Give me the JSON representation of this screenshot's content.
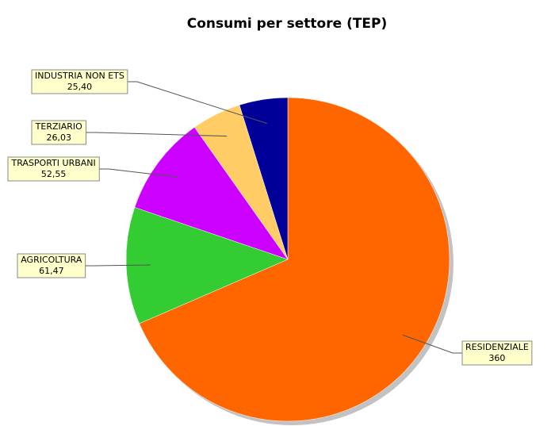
{
  "chart_data": {
    "type": "pie",
    "title": "Consumi per settore (TEP)",
    "categories": [
      "RESIDENZIALE",
      "AGRICOLTURA",
      "TRASPORTI URBANI",
      "TERZIARIO",
      "INDUSTRIA NON ETS"
    ],
    "values": [
      360,
      61.47,
      52.55,
      26.03,
      25.4
    ],
    "value_labels": [
      "360",
      "61,47",
      "52,55",
      "26,03",
      "25,40"
    ],
    "colors": [
      "#ff6600",
      "#33cc33",
      "#cc00ff",
      "#ffcc66",
      "#000099"
    ]
  }
}
